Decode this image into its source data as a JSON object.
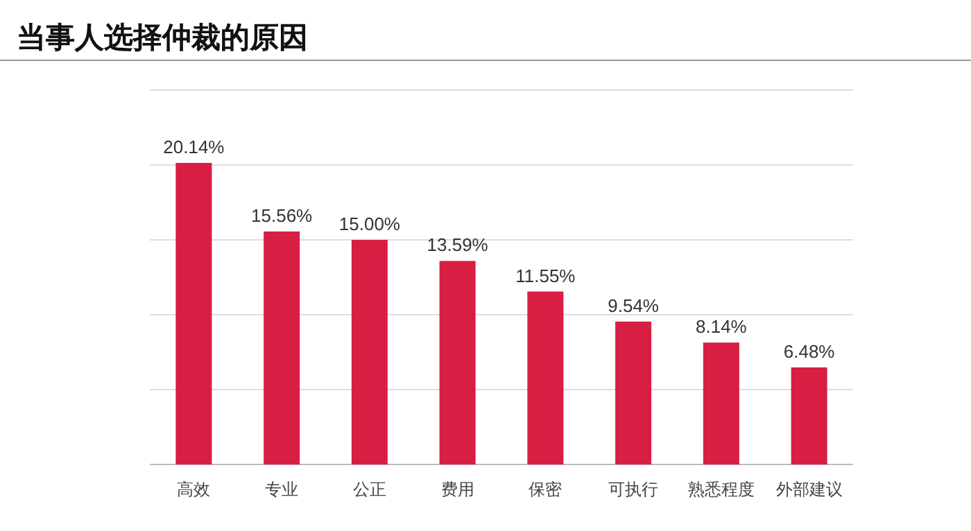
{
  "chart_data": {
    "type": "bar",
    "title": "当事人选择仲裁的原因",
    "categories": [
      "高效",
      "专业",
      "公正",
      "费用",
      "保密",
      "可执行",
      "熟悉程度",
      "外部建议"
    ],
    "values": [
      20.14,
      15.56,
      15.0,
      13.59,
      11.55,
      9.54,
      8.14,
      6.48
    ],
    "value_labels": [
      "20.14%",
      "15.56%",
      "15.00%",
      "13.59%",
      "11.55%",
      "9.54%",
      "8.14%",
      "6.48%"
    ],
    "color": "#d81e42",
    "ylim": [
      0,
      25
    ],
    "yticks": [
      {
        "value": 0,
        "label": null
      },
      {
        "value": 5,
        "label": null
      },
      {
        "value": 10,
        "label": null
      },
      {
        "value": 15,
        "label": null
      },
      {
        "value": 20,
        "label": null
      },
      {
        "value": 25,
        "label": null
      }
    ],
    "grid": "y",
    "tick_labels": "x"
  }
}
